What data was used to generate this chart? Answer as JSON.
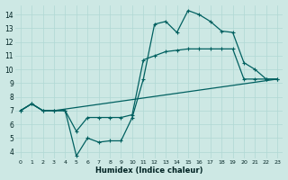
{
  "xlabel": "Humidex (Indice chaleur)",
  "bg_color": "#cde8e4",
  "line_color": "#006060",
  "grid_color": "#b0d8d4",
  "ylim": [
    3.5,
    14.7
  ],
  "xlim": [
    -0.5,
    23.5
  ],
  "yticks": [
    4,
    5,
    6,
    7,
    8,
    9,
    10,
    11,
    12,
    13,
    14
  ],
  "xticks": [
    0,
    1,
    2,
    3,
    4,
    5,
    6,
    7,
    8,
    9,
    10,
    11,
    12,
    13,
    14,
    15,
    16,
    17,
    18,
    19,
    20,
    21,
    22,
    23
  ],
  "line1_x": [
    0,
    1,
    2,
    3,
    4,
    5,
    6,
    7,
    8,
    9,
    10,
    11,
    12,
    13,
    14,
    15,
    16,
    17,
    18,
    19,
    20,
    21,
    22,
    23
  ],
  "line1_y": [
    7.0,
    7.5,
    7.0,
    7.0,
    7.0,
    5.5,
    6.5,
    6.5,
    6.5,
    6.5,
    6.7,
    10.7,
    11.0,
    11.3,
    11.4,
    11.5,
    11.5,
    11.5,
    11.5,
    11.5,
    9.3,
    9.3,
    9.3,
    9.3
  ],
  "line2_x": [
    0,
    1,
    2,
    3,
    4,
    5,
    6,
    7,
    8,
    9,
    10,
    11,
    12,
    13,
    14,
    15,
    16,
    17,
    18,
    19,
    20,
    21,
    22,
    23
  ],
  "line2_y": [
    7.0,
    7.5,
    7.0,
    7.0,
    7.0,
    3.7,
    5.0,
    4.7,
    4.8,
    4.8,
    6.5,
    9.3,
    13.3,
    13.5,
    12.7,
    14.3,
    14.0,
    13.5,
    12.8,
    12.7,
    10.5,
    10.0,
    9.3,
    9.3
  ],
  "line3_x": [
    0,
    1,
    2,
    3,
    23
  ],
  "line3_y": [
    7.0,
    7.5,
    7.0,
    7.0,
    9.3
  ]
}
